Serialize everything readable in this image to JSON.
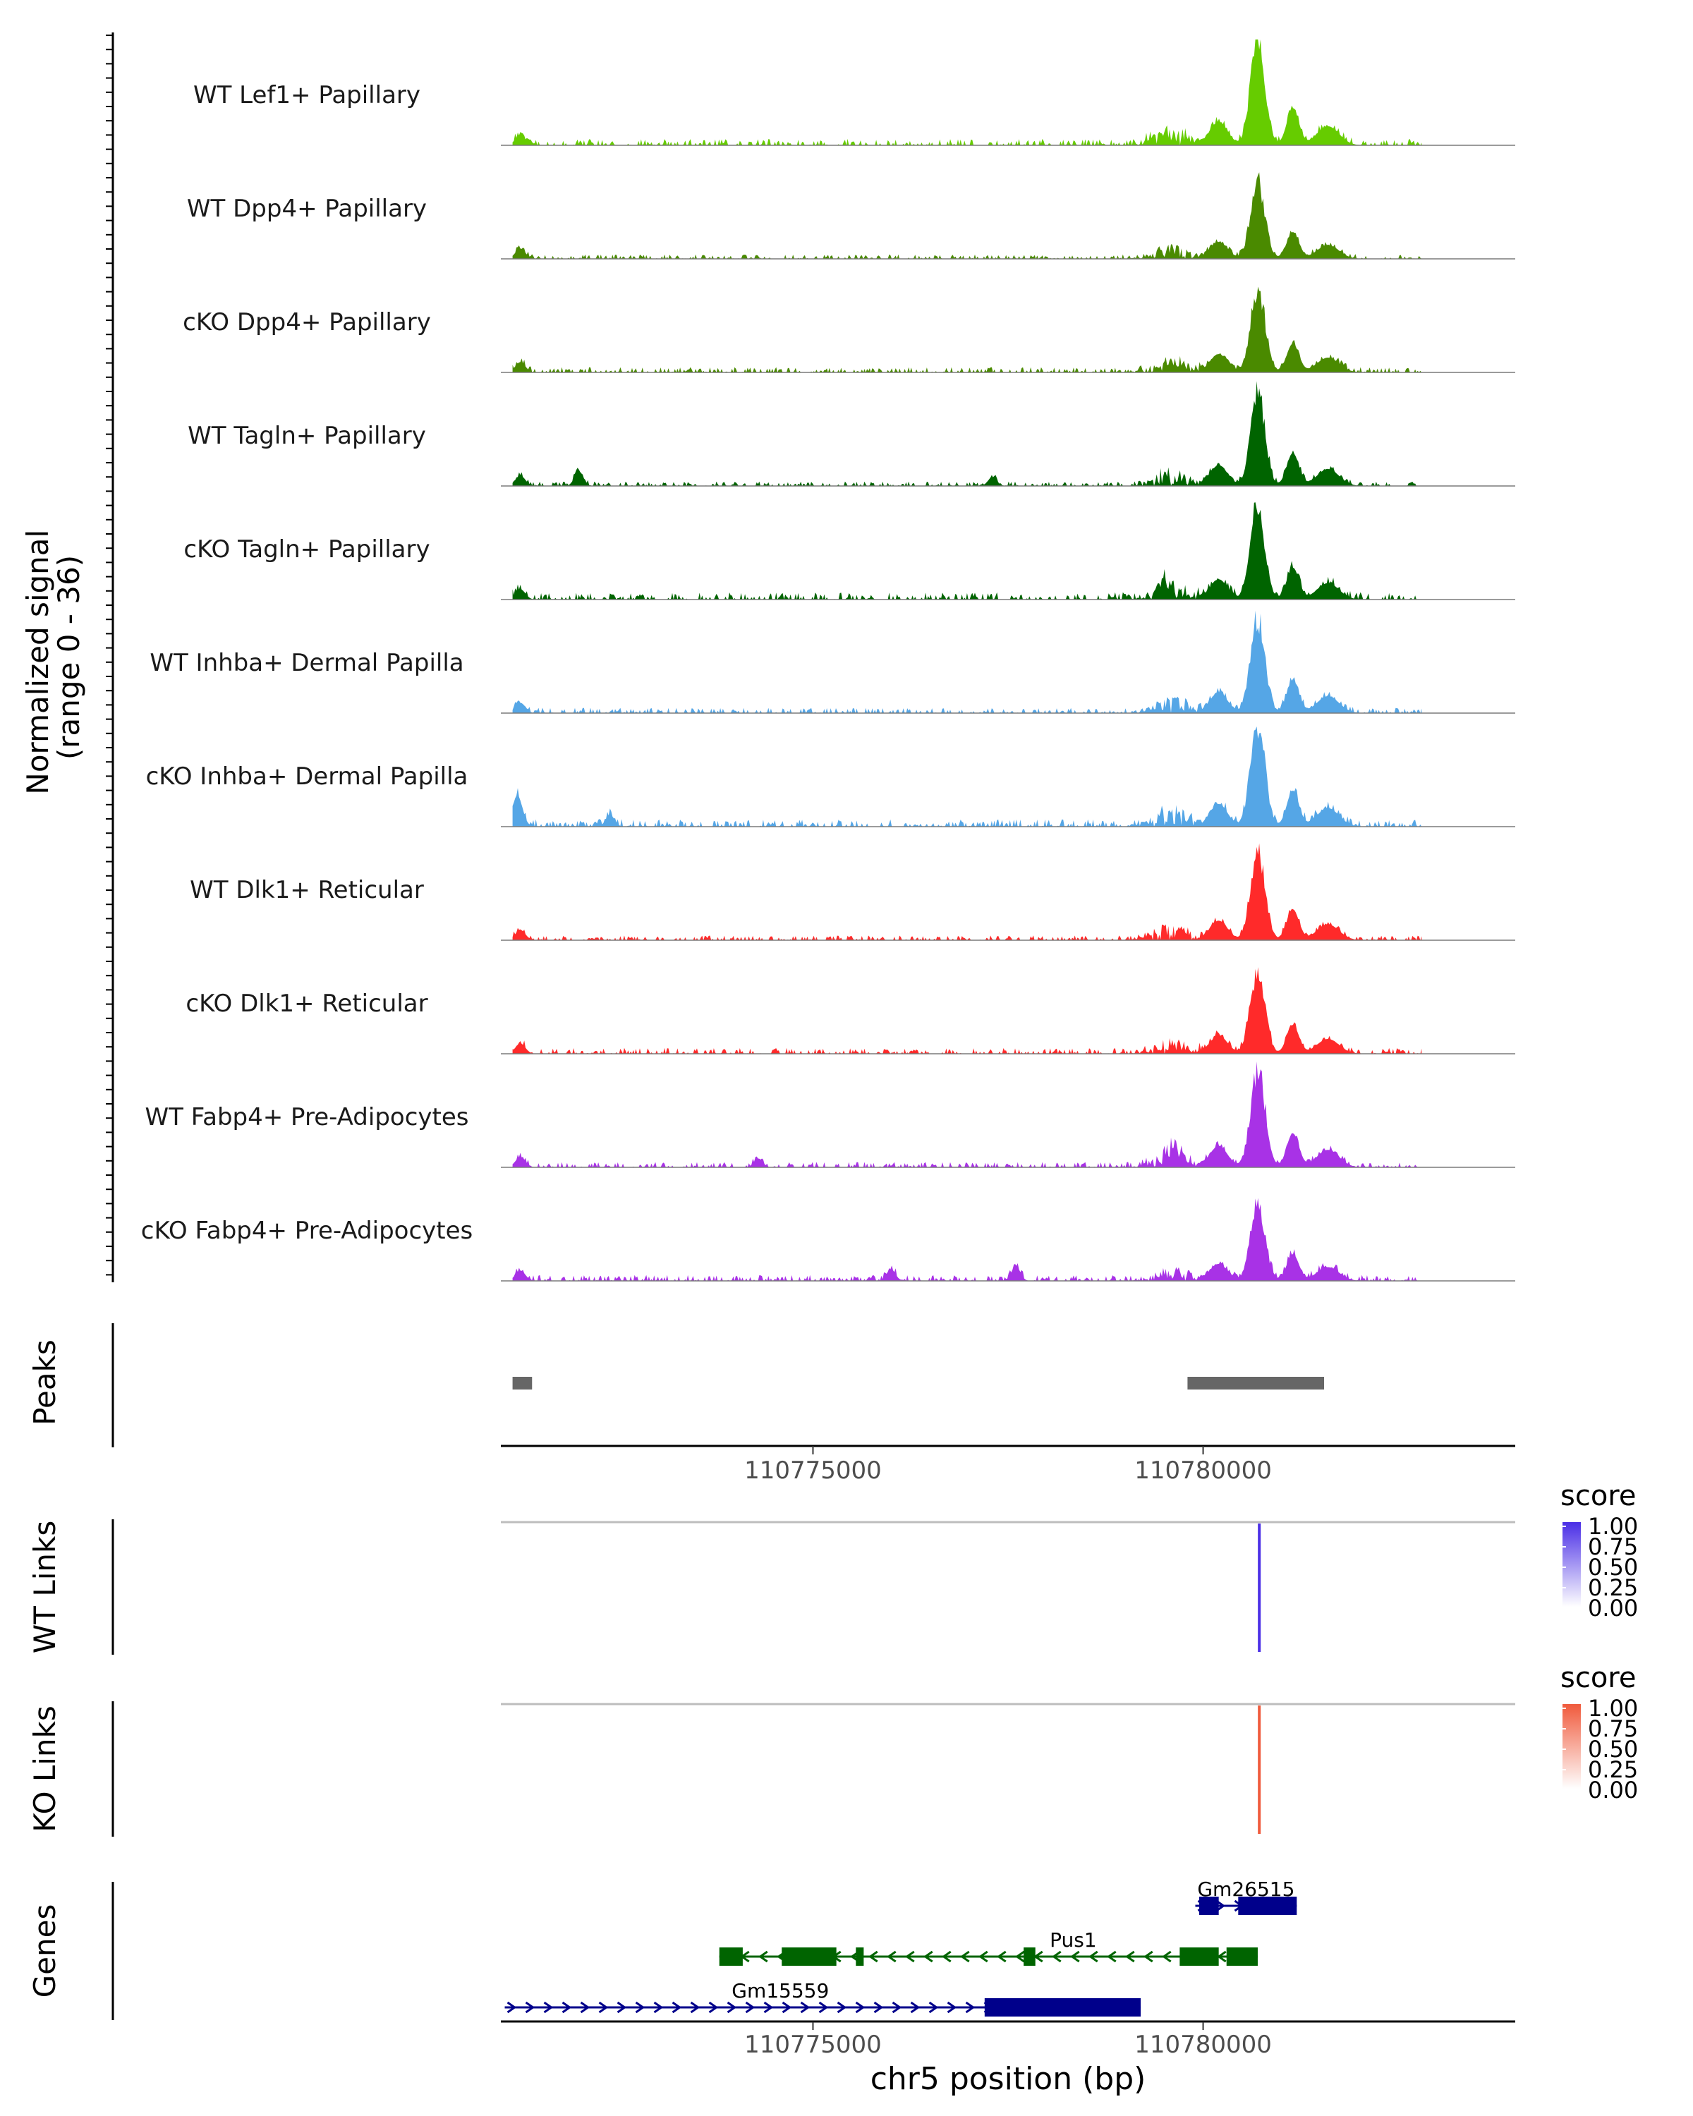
{
  "chart_data": {
    "type": "coverage",
    "title": "",
    "xlabel": "chr5 position (bp)",
    "x_range": [
      110771000,
      110784000
    ],
    "x_ticks": [
      110775000,
      110780000
    ],
    "x_tick_labels": [
      "110775000",
      "110780000"
    ],
    "coverage": {
      "ylabel": "Normalized signal\n(range 0 - 36)",
      "ylabel_lines": [
        "Normalized signal",
        "(range 0 - 36)"
      ],
      "ylim": [
        0,
        36
      ],
      "tracks": [
        {
          "name": "WT Lef1+ Papillary",
          "color": "#66cc00",
          "peak": 36,
          "noise": 2.2,
          "bumps": []
        },
        {
          "name": "WT Dpp4+ Papillary",
          "color": "#4a8a00",
          "peak": 26,
          "noise": 1.5,
          "bumps": []
        },
        {
          "name": "cKO Dpp4+ Papillary",
          "color": "#4a8a00",
          "peak": 28,
          "noise": 1.8,
          "bumps": []
        },
        {
          "name": "WT Tagln+ Papillary",
          "color": "#006400",
          "peak": 32,
          "noise": 1.5,
          "bumps": [
            [
              110772000,
              5
            ],
            [
              110777300,
              3
            ]
          ]
        },
        {
          "name": "cKO Tagln+ Papillary",
          "color": "#006400",
          "peak": 31,
          "noise": 2.5,
          "bumps": [
            [
              110779500,
              5
            ]
          ]
        },
        {
          "name": "WT Inhba+ Dermal Papilla",
          "color": "#55a6e6",
          "peak": 32,
          "noise": 1.8,
          "bumps": []
        },
        {
          "name": "cKO Inhba+ Dermal Papilla",
          "color": "#55a6e6",
          "peak": 35,
          "noise": 2.5,
          "bumps": [
            [
              110771200,
              8
            ],
            [
              110772400,
              4
            ]
          ]
        },
        {
          "name": "WT Dlk1+ Reticular",
          "color": "#ff2a2a",
          "peak": 30,
          "noise": 1.6,
          "bumps": []
        },
        {
          "name": "cKO Dlk1+ Reticular",
          "color": "#ff2a2a",
          "peak": 28,
          "noise": 2.0,
          "bumps": []
        },
        {
          "name": "WT Fabp4+ Pre-Adipocytes",
          "color": "#a832e6",
          "peak": 33,
          "noise": 1.8,
          "bumps": [
            [
              110774300,
              3
            ],
            [
              110779600,
              4
            ]
          ]
        },
        {
          "name": "cKO Fabp4+ Pre-Adipocytes",
          "color": "#a832e6",
          "peak": 26,
          "noise": 2.0,
          "bumps": [
            [
              110776000,
              4
            ],
            [
              110777600,
              5
            ]
          ]
        }
      ]
    },
    "peaks": {
      "label": "Peaks",
      "regions": [
        [
          110771150,
          110771400
        ],
        [
          110779800,
          110781550
        ]
      ]
    },
    "links": [
      {
        "label": "WT Links",
        "color": "#4a2ee6",
        "legend_title": "score",
        "legend_ticks": [
          "1.00",
          "0.75",
          "0.50",
          "0.25",
          "0.00"
        ],
        "position": 110780720,
        "score": 1.0
      },
      {
        "label": "KO Links",
        "color": "#f05a3c",
        "legend_title": "score",
        "legend_ticks": [
          "1.00",
          "0.75",
          "0.50",
          "0.25",
          "0.00"
        ],
        "position": 110780720,
        "score": 1.0
      }
    ],
    "genes": {
      "label": "Genes",
      "items": [
        {
          "name": "Gm26515",
          "strand": "+",
          "color": "#00008b",
          "start": 110779900,
          "end": 110781200,
          "exons": [
            [
              110779950,
              110780200
            ],
            [
              110780450,
              110781200
            ]
          ]
        },
        {
          "name": "Pus1",
          "strand": "-",
          "color": "#006400",
          "start": 110773800,
          "end": 110780700,
          "exons": [
            [
              110773800,
              110774100
            ],
            [
              110774600,
              110775300
            ],
            [
              110775550,
              110775650
            ],
            [
              110777700,
              110777850
            ],
            [
              110779700,
              110780200
            ],
            [
              110780300,
              110780700
            ]
          ]
        },
        {
          "name": "Gm15559",
          "strand": "+",
          "color": "#00008b",
          "start": 110771050,
          "end": 110779200,
          "exons": [
            [
              110777200,
              110779200
            ]
          ]
        }
      ]
    },
    "peak_center": 110780700
  }
}
